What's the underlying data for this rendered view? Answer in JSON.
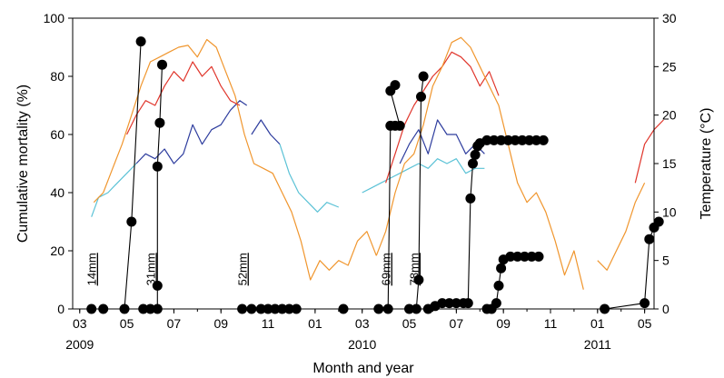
{
  "chart_data": {
    "type": "line",
    "xlabel": "Month and year",
    "ylabel_left": "Cumulative mortality (%)",
    "ylabel_right": "Temperature (°C)",
    "ylim_left": [
      0,
      100
    ],
    "ylim_right": [
      0,
      30
    ],
    "yticks_left": [
      "0",
      "20",
      "40",
      "60",
      "80",
      "100"
    ],
    "yticks_right": [
      "0",
      "5",
      "10",
      "15",
      "20",
      "25",
      "30"
    ],
    "xlim_months": [
      2.7,
      27.4
    ],
    "xticks": [
      {
        "m": 3,
        "label": "03"
      },
      {
        "m": 5,
        "label": "05"
      },
      {
        "m": 7,
        "label": "07"
      },
      {
        "m": 9,
        "label": "09"
      },
      {
        "m": 11,
        "label": "11"
      },
      {
        "m": 13,
        "label": "01"
      },
      {
        "m": 15,
        "label": "03"
      },
      {
        "m": 17,
        "label": "05"
      },
      {
        "m": 19,
        "label": "07"
      },
      {
        "m": 21,
        "label": "09"
      },
      {
        "m": 23,
        "label": "11"
      },
      {
        "m": 25,
        "label": "01"
      },
      {
        "m": 27,
        "label": "05"
      }
    ],
    "xticks_fix_note": "",
    "year_labels": [
      {
        "m": 3,
        "label": "2009"
      },
      {
        "m": 15,
        "label": "2010"
      },
      {
        "m": 25,
        "label": "2011"
      }
    ],
    "grid": false,
    "size_labels": [
      {
        "text": "14mm",
        "m": 3.5,
        "y": 8
      },
      {
        "text": "31mm",
        "m": 6.0,
        "y": 8
      },
      {
        "text": "52mm",
        "m": 9.9,
        "y": 8
      },
      {
        "text": "69mm",
        "m": 16.0,
        "y": 8
      },
      {
        "text": "78mm",
        "m": 17.2,
        "y": 8
      }
    ],
    "temperature_series": [
      {
        "color": "#5bc2d6",
        "points": [
          [
            3.5,
            9.5
          ],
          [
            3.8,
            11.5
          ],
          [
            4.2,
            12
          ],
          [
            4.6,
            13
          ],
          [
            5.0,
            14
          ],
          [
            5.4,
            15
          ]
        ]
      },
      {
        "color": "#2e3d9e",
        "points": [
          [
            5.4,
            15
          ],
          [
            5.8,
            16
          ],
          [
            6.2,
            15.5
          ],
          [
            6.6,
            16.5
          ],
          [
            7.0,
            15
          ],
          [
            7.4,
            16
          ],
          [
            7.8,
            19
          ],
          [
            8.2,
            17
          ],
          [
            8.6,
            18.5
          ],
          [
            9.0,
            19
          ],
          [
            9.4,
            20.5
          ],
          [
            9.8,
            21.5
          ],
          [
            10.1,
            21
          ]
        ]
      },
      {
        "color": "#2e3d9e",
        "points": [
          [
            10.3,
            18
          ],
          [
            10.7,
            19.5
          ],
          [
            11.1,
            18
          ],
          [
            11.5,
            17
          ]
        ]
      },
      {
        "color": "#5bc2d6",
        "points": [
          [
            11.5,
            17
          ],
          [
            11.9,
            14
          ],
          [
            12.3,
            12
          ],
          [
            12.7,
            11
          ],
          [
            13.1,
            10
          ],
          [
            13.5,
            11
          ],
          [
            14.0,
            10.5
          ]
        ]
      },
      {
        "color": "#f0962e",
        "points": [
          [
            3.6,
            11
          ],
          [
            4.0,
            12
          ],
          [
            4.4,
            14.5
          ],
          [
            4.8,
            17
          ],
          [
            5.2,
            20
          ],
          [
            5.6,
            23
          ],
          [
            6.0,
            25.5
          ],
          [
            6.4,
            26
          ],
          [
            6.8,
            26.5
          ],
          [
            7.2,
            27
          ],
          [
            7.6,
            27.2
          ],
          [
            8.0,
            26
          ],
          [
            8.4,
            27.8
          ],
          [
            8.8,
            27
          ],
          [
            9.2,
            24.5
          ],
          [
            9.6,
            22
          ],
          [
            10.0,
            18
          ],
          [
            10.4,
            15
          ],
          [
            10.8,
            14.5
          ],
          [
            11.2,
            14
          ],
          [
            11.6,
            12
          ],
          [
            12.0,
            10
          ],
          [
            12.4,
            7
          ],
          [
            12.8,
            3
          ],
          [
            13.2,
            5
          ],
          [
            13.6,
            4
          ],
          [
            14.0,
            5
          ],
          [
            14.4,
            4.5
          ],
          [
            14.8,
            7
          ],
          [
            15.2,
            8
          ],
          [
            15.6,
            5.5
          ]
        ]
      },
      {
        "color": "#e0362c",
        "points": [
          [
            5.0,
            18
          ],
          [
            5.4,
            20
          ],
          [
            5.8,
            21.5
          ],
          [
            6.2,
            21
          ],
          [
            6.6,
            23
          ],
          [
            7.0,
            24.5
          ],
          [
            7.4,
            23.5
          ],
          [
            7.8,
            25.5
          ],
          [
            8.2,
            24
          ],
          [
            8.6,
            25
          ],
          [
            9.0,
            23
          ],
          [
            9.4,
            21.5
          ],
          [
            9.8,
            21
          ]
        ]
      },
      {
        "color": "#5bc2d6",
        "points": [
          [
            15.0,
            12
          ],
          [
            15.4,
            12.5
          ],
          [
            15.8,
            13
          ],
          [
            16.2,
            13.5
          ],
          [
            16.6,
            14
          ],
          [
            17.0,
            14.5
          ],
          [
            17.4,
            15
          ],
          [
            17.8,
            14.5
          ],
          [
            18.2,
            15.5
          ],
          [
            18.6,
            15
          ],
          [
            19.0,
            15.5
          ],
          [
            19.4,
            14
          ],
          [
            19.8,
            14.5
          ],
          [
            20.2,
            14.5
          ]
        ]
      },
      {
        "color": "#2e3d9e",
        "points": [
          [
            16.6,
            15
          ],
          [
            17.0,
            17
          ],
          [
            17.4,
            18.5
          ],
          [
            17.8,
            16
          ],
          [
            18.2,
            19.5
          ],
          [
            18.6,
            18
          ],
          [
            19.0,
            18
          ],
          [
            19.4,
            16
          ],
          [
            19.8,
            17
          ],
          [
            20.2,
            16
          ]
        ]
      },
      {
        "color": "#e0362c",
        "points": [
          [
            16.0,
            13
          ],
          [
            16.4,
            16
          ],
          [
            16.8,
            19
          ],
          [
            17.2,
            21
          ],
          [
            17.6,
            22.5
          ],
          [
            18.0,
            24
          ],
          [
            18.4,
            25
          ],
          [
            18.8,
            26.5
          ],
          [
            19.2,
            26
          ],
          [
            19.6,
            25
          ],
          [
            20.0,
            23
          ],
          [
            20.4,
            24.5
          ],
          [
            20.8,
            22
          ]
        ]
      },
      {
        "color": "#f0962e",
        "points": [
          [
            15.6,
            5.5
          ],
          [
            16.0,
            8
          ],
          [
            16.4,
            12
          ],
          [
            16.8,
            15
          ],
          [
            17.2,
            16
          ],
          [
            17.6,
            19
          ],
          [
            18.0,
            23
          ],
          [
            18.4,
            25
          ],
          [
            18.8,
            27.5
          ],
          [
            19.2,
            28
          ],
          [
            19.6,
            27
          ],
          [
            20.0,
            25
          ],
          [
            20.4,
            23
          ],
          [
            20.8,
            21
          ],
          [
            21.2,
            17
          ],
          [
            21.6,
            13
          ],
          [
            22.0,
            11
          ],
          [
            22.4,
            12
          ],
          [
            22.8,
            10
          ],
          [
            23.2,
            7
          ],
          [
            23.6,
            3.5
          ],
          [
            24.0,
            6
          ],
          [
            24.4,
            2
          ]
        ]
      },
      {
        "color": "#f0962e",
        "points": [
          [
            25.0,
            5
          ],
          [
            25.4,
            4
          ],
          [
            25.8,
            6
          ],
          [
            26.2,
            8
          ],
          [
            26.6,
            11
          ],
          [
            27.0,
            13
          ]
        ]
      },
      {
        "color": "#e0362c",
        "points": [
          [
            26.6,
            13
          ],
          [
            27.0,
            17
          ],
          [
            27.4,
            18.5
          ],
          [
            27.8,
            19.5
          ]
        ]
      }
    ],
    "mortality_series": [
      {
        "name": "",
        "points": [
          [
            3.5,
            0
          ],
          [
            4.0,
            0
          ],
          [
            4.9,
            0
          ],
          [
            5.2,
            30
          ],
          [
            5.6,
            92
          ]
        ]
      },
      {
        "name": "",
        "points": [
          [
            5.7,
            0
          ],
          [
            6.0,
            0
          ],
          [
            6.3,
            0
          ],
          [
            6.3,
            8
          ],
          [
            6.3,
            49
          ],
          [
            6.4,
            64
          ],
          [
            6.5,
            84
          ]
        ]
      },
      {
        "name": "",
        "points": [
          [
            9.9,
            0
          ],
          [
            10.3,
            0
          ],
          [
            10.7,
            0
          ],
          [
            11.0,
            0
          ],
          [
            11.3,
            0
          ],
          [
            11.6,
            0
          ],
          [
            11.9,
            0
          ],
          [
            12.2,
            0
          ],
          [
            14.2,
            0
          ],
          [
            15.7,
            0
          ],
          [
            16.1,
            0
          ],
          [
            16.2,
            63
          ],
          [
            16.4,
            63
          ],
          [
            16.6,
            63
          ],
          [
            16.2,
            75
          ],
          [
            16.4,
            77
          ]
        ]
      },
      {
        "name": "",
        "points": [
          [
            17.0,
            0
          ],
          [
            17.3,
            0
          ],
          [
            17.4,
            10
          ],
          [
            17.5,
            73
          ],
          [
            17.6,
            80
          ]
        ]
      },
      {
        "name": "",
        "points": [
          [
            17.8,
            0
          ],
          [
            18.1,
            1
          ],
          [
            18.4,
            2
          ],
          [
            18.7,
            2
          ],
          [
            19.0,
            2
          ],
          [
            19.3,
            2
          ],
          [
            19.5,
            2
          ],
          [
            19.6,
            38
          ],
          [
            19.7,
            50
          ],
          [
            19.8,
            53
          ],
          [
            19.9,
            56
          ],
          [
            20.0,
            57
          ],
          [
            20.3,
            58
          ],
          [
            20.6,
            58
          ],
          [
            20.9,
            58
          ],
          [
            21.2,
            58
          ],
          [
            21.5,
            58
          ],
          [
            21.8,
            58
          ],
          [
            22.1,
            58
          ],
          [
            22.4,
            58
          ],
          [
            22.7,
            58
          ]
        ]
      },
      {
        "name": "",
        "points": [
          [
            20.3,
            0
          ],
          [
            20.5,
            0
          ],
          [
            20.7,
            2
          ],
          [
            20.8,
            8
          ],
          [
            20.9,
            14
          ],
          [
            21.0,
            17
          ],
          [
            21.3,
            18
          ],
          [
            21.6,
            18
          ],
          [
            21.9,
            18
          ],
          [
            22.2,
            18
          ],
          [
            22.5,
            18
          ]
        ]
      },
      {
        "name": "",
        "points": [
          [
            25.3,
            0
          ],
          [
            27.0,
            2
          ],
          [
            27.2,
            24
          ],
          [
            27.4,
            28
          ],
          [
            27.6,
            30
          ]
        ]
      }
    ]
  }
}
